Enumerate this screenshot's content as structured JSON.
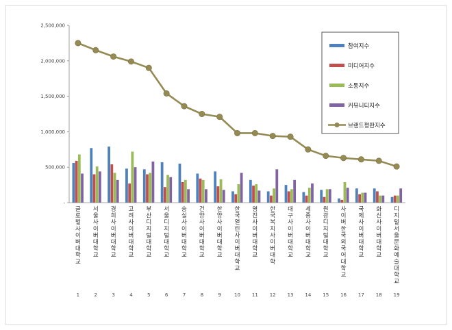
{
  "chart_data": {
    "type": "bar",
    "title": "",
    "xlabel": "",
    "ylabel": "",
    "ylim": [
      0,
      2500000
    ],
    "yticks": [
      "-",
      "500,000",
      "1,000,000",
      "1,500,000",
      "2,000,000",
      "2,500,000"
    ],
    "grid": false,
    "legend_position": "top-right",
    "categories": [
      "글로벌사이버대학교",
      "서울사이버대학교",
      "경희사이버대학교",
      "고려사이버대학교",
      "부산디지털대학교",
      "서울디지털대학교",
      "숭실사이버대학교",
      "건양사이버대학교",
      "한양사이버대학교",
      "한국열린사이버대학교",
      "영진사이버대학교",
      "한국복지사이버대학",
      "대구사이버대학교",
      "세종사이버대학교",
      "원광디지털대학교",
      "사이버한국외국어대학교",
      "국제사이버대학교",
      "화신사이버대학교",
      "디지털서울문화예술대학교"
    ],
    "ranks": [
      "1",
      "2",
      "3",
      "4",
      "5",
      "6",
      "7",
      "8",
      "9",
      "10",
      "11",
      "12",
      "13",
      "14",
      "15",
      "16",
      "17",
      "18",
      "19"
    ],
    "series": [
      {
        "name": "참여지수",
        "kind": "bar",
        "color": "#4F81BD",
        "values": [
          560000,
          770000,
          790000,
          480000,
          470000,
          570000,
          550000,
          410000,
          440000,
          160000,
          320000,
          160000,
          250000,
          150000,
          180000,
          60000,
          200000,
          200000,
          80000
        ]
      },
      {
        "name": "미디어지수",
        "kind": "bar",
        "color": "#C0504D",
        "values": [
          590000,
          400000,
          540000,
          270000,
          400000,
          220000,
          290000,
          340000,
          230000,
          120000,
          240000,
          100000,
          160000,
          100000,
          80000,
          40000,
          120000,
          160000,
          100000
        ]
      },
      {
        "name": "소통지수",
        "kind": "bar",
        "color": "#9BBB59",
        "values": [
          680000,
          510000,
          420000,
          720000,
          420000,
          390000,
          320000,
          320000,
          330000,
          260000,
          260000,
          200000,
          190000,
          210000,
          190000,
          290000,
          140000,
          100000,
          100000
        ]
      },
      {
        "name": "커뮤니티지수",
        "kind": "bar",
        "color": "#8064A2",
        "values": [
          410000,
          440000,
          320000,
          500000,
          580000,
          360000,
          190000,
          190000,
          180000,
          420000,
          170000,
          470000,
          320000,
          270000,
          190000,
          210000,
          140000,
          100000,
          200000
        ]
      },
      {
        "name": "브랜드평판지수",
        "kind": "line",
        "color": "#948A54",
        "values": [
          2250000,
          2150000,
          2060000,
          1990000,
          1900000,
          1540000,
          1360000,
          1250000,
          1210000,
          980000,
          980000,
          940000,
          930000,
          750000,
          660000,
          630000,
          610000,
          590000,
          510000
        ]
      }
    ]
  }
}
